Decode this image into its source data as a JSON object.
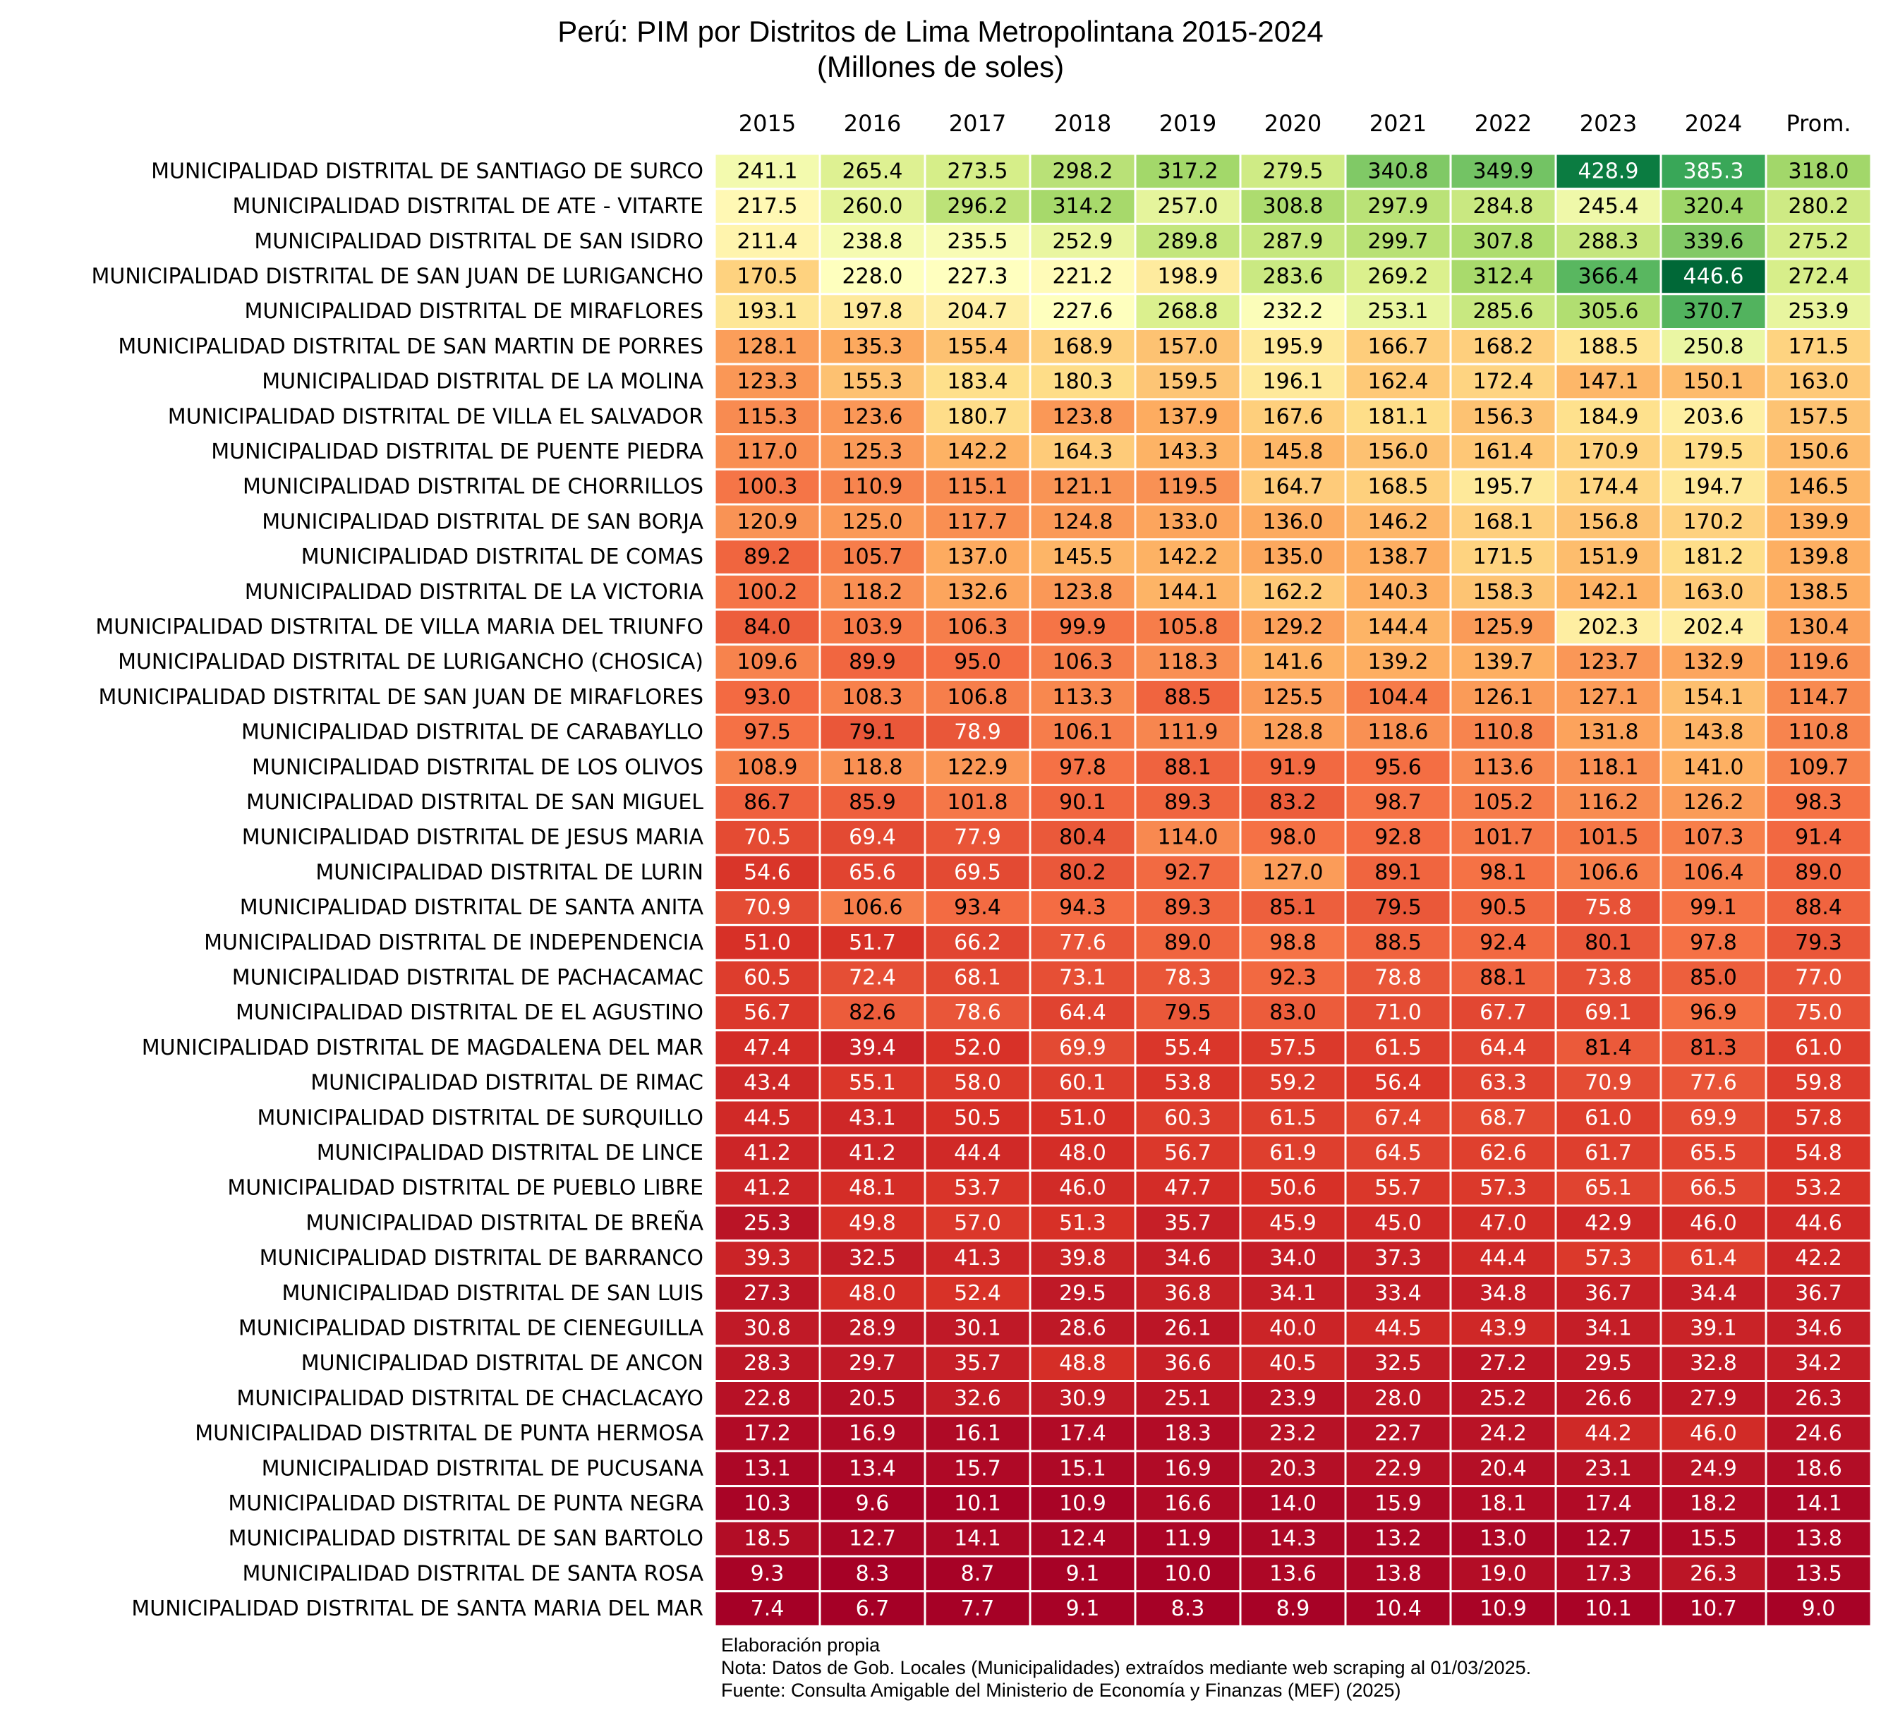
{
  "chart_data": {
    "type": "heatmap",
    "title": "Perú: PIM por Distritos de Lima Metropolintana 2015-2024",
    "subtitle": "(Millones de soles)",
    "columns": [
      "2015",
      "2016",
      "2017",
      "2018",
      "2019",
      "2020",
      "2021",
      "2022",
      "2023",
      "2024",
      "Prom."
    ],
    "colormap": "RdYlGn",
    "color_range": [
      7,
      447
    ],
    "rows": [
      {
        "label": "MUNICIPALIDAD DISTRITAL DE SANTIAGO DE SURCO",
        "values": [
          241.1,
          265.4,
          273.5,
          298.2,
          317.2,
          279.5,
          340.8,
          349.9,
          428.9,
          385.3,
          318.0
        ]
      },
      {
        "label": "MUNICIPALIDAD DISTRITAL DE ATE - VITARTE",
        "values": [
          217.5,
          260.0,
          296.2,
          314.2,
          257.0,
          308.8,
          297.9,
          284.8,
          245.4,
          320.4,
          280.2
        ]
      },
      {
        "label": "MUNICIPALIDAD DISTRITAL DE SAN ISIDRO",
        "values": [
          211.4,
          238.8,
          235.5,
          252.9,
          289.8,
          287.9,
          299.7,
          307.8,
          288.3,
          339.6,
          275.2
        ]
      },
      {
        "label": "MUNICIPALIDAD DISTRITAL DE SAN JUAN DE LURIGANCHO",
        "values": [
          170.5,
          228.0,
          227.3,
          221.2,
          198.9,
          283.6,
          269.2,
          312.4,
          366.4,
          446.6,
          272.4
        ]
      },
      {
        "label": "MUNICIPALIDAD DISTRITAL DE MIRAFLORES",
        "values": [
          193.1,
          197.8,
          204.7,
          227.6,
          268.8,
          232.2,
          253.1,
          285.6,
          305.6,
          370.7,
          253.9
        ]
      },
      {
        "label": "MUNICIPALIDAD DISTRITAL DE SAN MARTIN DE PORRES",
        "values": [
          128.1,
          135.3,
          155.4,
          168.9,
          157.0,
          195.9,
          166.7,
          168.2,
          188.5,
          250.8,
          171.5
        ]
      },
      {
        "label": "MUNICIPALIDAD DISTRITAL DE LA MOLINA",
        "values": [
          123.3,
          155.3,
          183.4,
          180.3,
          159.5,
          196.1,
          162.4,
          172.4,
          147.1,
          150.1,
          163.0
        ]
      },
      {
        "label": "MUNICIPALIDAD DISTRITAL DE VILLA EL SALVADOR",
        "values": [
          115.3,
          123.6,
          180.7,
          123.8,
          137.9,
          167.6,
          181.1,
          156.3,
          184.9,
          203.6,
          157.5
        ]
      },
      {
        "label": "MUNICIPALIDAD DISTRITAL DE PUENTE PIEDRA",
        "values": [
          117.0,
          125.3,
          142.2,
          164.3,
          143.3,
          145.8,
          156.0,
          161.4,
          170.9,
          179.5,
          150.6
        ]
      },
      {
        "label": "MUNICIPALIDAD DISTRITAL DE CHORRILLOS",
        "values": [
          100.3,
          110.9,
          115.1,
          121.1,
          119.5,
          164.7,
          168.5,
          195.7,
          174.4,
          194.7,
          146.5
        ]
      },
      {
        "label": "MUNICIPALIDAD DISTRITAL DE SAN BORJA",
        "values": [
          120.9,
          125.0,
          117.7,
          124.8,
          133.0,
          136.0,
          146.2,
          168.1,
          156.8,
          170.2,
          139.9
        ]
      },
      {
        "label": "MUNICIPALIDAD DISTRITAL DE COMAS",
        "values": [
          89.2,
          105.7,
          137.0,
          145.5,
          142.2,
          135.0,
          138.7,
          171.5,
          151.9,
          181.2,
          139.8
        ]
      },
      {
        "label": "MUNICIPALIDAD DISTRITAL DE LA VICTORIA",
        "values": [
          100.2,
          118.2,
          132.6,
          123.8,
          144.1,
          162.2,
          140.3,
          158.3,
          142.1,
          163.0,
          138.5
        ]
      },
      {
        "label": "MUNICIPALIDAD DISTRITAL DE VILLA MARIA DEL TRIUNFO",
        "values": [
          84.0,
          103.9,
          106.3,
          99.9,
          105.8,
          129.2,
          144.4,
          125.9,
          202.3,
          202.4,
          130.4
        ]
      },
      {
        "label": "MUNICIPALIDAD DISTRITAL DE LURIGANCHO (CHOSICA)",
        "values": [
          109.6,
          89.9,
          95.0,
          106.3,
          118.3,
          141.6,
          139.2,
          139.7,
          123.7,
          132.9,
          119.6
        ]
      },
      {
        "label": "MUNICIPALIDAD DISTRITAL DE SAN JUAN DE MIRAFLORES",
        "values": [
          93.0,
          108.3,
          106.8,
          113.3,
          88.5,
          125.5,
          104.4,
          126.1,
          127.1,
          154.1,
          114.7
        ]
      },
      {
        "label": "MUNICIPALIDAD DISTRITAL DE CARABAYLLO",
        "values": [
          97.5,
          79.1,
          78.9,
          106.1,
          111.9,
          128.8,
          118.6,
          110.8,
          131.8,
          143.8,
          110.8
        ]
      },
      {
        "label": "MUNICIPALIDAD DISTRITAL DE LOS OLIVOS",
        "values": [
          108.9,
          118.8,
          122.9,
          97.8,
          88.1,
          91.9,
          95.6,
          113.6,
          118.1,
          141.0,
          109.7
        ]
      },
      {
        "label": "MUNICIPALIDAD DISTRITAL DE SAN MIGUEL",
        "values": [
          86.7,
          85.9,
          101.8,
          90.1,
          89.3,
          83.2,
          98.7,
          105.2,
          116.2,
          126.2,
          98.3
        ]
      },
      {
        "label": "MUNICIPALIDAD DISTRITAL DE JESUS MARIA",
        "values": [
          70.5,
          69.4,
          77.9,
          80.4,
          114.0,
          98.0,
          92.8,
          101.7,
          101.5,
          107.3,
          91.4
        ]
      },
      {
        "label": "MUNICIPALIDAD DISTRITAL DE LURIN",
        "values": [
          54.6,
          65.6,
          69.5,
          80.2,
          92.7,
          127.0,
          89.1,
          98.1,
          106.6,
          106.4,
          89.0
        ]
      },
      {
        "label": "MUNICIPALIDAD DISTRITAL DE SANTA ANITA",
        "values": [
          70.9,
          106.6,
          93.4,
          94.3,
          89.3,
          85.1,
          79.5,
          90.5,
          75.8,
          99.1,
          88.4
        ]
      },
      {
        "label": "MUNICIPALIDAD DISTRITAL DE INDEPENDENCIA",
        "values": [
          51.0,
          51.7,
          66.2,
          77.6,
          89.0,
          98.8,
          88.5,
          92.4,
          80.1,
          97.8,
          79.3
        ]
      },
      {
        "label": "MUNICIPALIDAD DISTRITAL DE PACHACAMAC",
        "values": [
          60.5,
          72.4,
          68.1,
          73.1,
          78.3,
          92.3,
          78.8,
          88.1,
          73.8,
          85.0,
          77.0
        ]
      },
      {
        "label": "MUNICIPALIDAD DISTRITAL DE EL AGUSTINO",
        "values": [
          56.7,
          82.6,
          78.6,
          64.4,
          79.5,
          83.0,
          71.0,
          67.7,
          69.1,
          96.9,
          75.0
        ]
      },
      {
        "label": "MUNICIPALIDAD DISTRITAL DE MAGDALENA DEL MAR",
        "values": [
          47.4,
          39.4,
          52.0,
          69.9,
          55.4,
          57.5,
          61.5,
          64.4,
          81.4,
          81.3,
          61.0
        ]
      },
      {
        "label": "MUNICIPALIDAD DISTRITAL DE RIMAC",
        "values": [
          43.4,
          55.1,
          58.0,
          60.1,
          53.8,
          59.2,
          56.4,
          63.3,
          70.9,
          77.6,
          59.8
        ]
      },
      {
        "label": "MUNICIPALIDAD DISTRITAL DE SURQUILLO",
        "values": [
          44.5,
          43.1,
          50.5,
          51.0,
          60.3,
          61.5,
          67.4,
          68.7,
          61.0,
          69.9,
          57.8
        ]
      },
      {
        "label": "MUNICIPALIDAD DISTRITAL DE LINCE",
        "values": [
          41.2,
          41.2,
          44.4,
          48.0,
          56.7,
          61.9,
          64.5,
          62.6,
          61.7,
          65.5,
          54.8
        ]
      },
      {
        "label": "MUNICIPALIDAD DISTRITAL DE PUEBLO LIBRE",
        "values": [
          41.2,
          48.1,
          53.7,
          46.0,
          47.7,
          50.6,
          55.7,
          57.3,
          65.1,
          66.5,
          53.2
        ]
      },
      {
        "label": "MUNICIPALIDAD DISTRITAL DE BREÑA",
        "values": [
          25.3,
          49.8,
          57.0,
          51.3,
          35.7,
          45.9,
          45.0,
          47.0,
          42.9,
          46.0,
          44.6
        ]
      },
      {
        "label": "MUNICIPALIDAD DISTRITAL DE BARRANCO",
        "values": [
          39.3,
          32.5,
          41.3,
          39.8,
          34.6,
          34.0,
          37.3,
          44.4,
          57.3,
          61.4,
          42.2
        ]
      },
      {
        "label": "MUNICIPALIDAD DISTRITAL DE SAN LUIS",
        "values": [
          27.3,
          48.0,
          52.4,
          29.5,
          36.8,
          34.1,
          33.4,
          34.8,
          36.7,
          34.4,
          36.7
        ]
      },
      {
        "label": "MUNICIPALIDAD DISTRITAL DE CIENEGUILLA",
        "values": [
          30.8,
          28.9,
          30.1,
          28.6,
          26.1,
          40.0,
          44.5,
          43.9,
          34.1,
          39.1,
          34.6
        ]
      },
      {
        "label": "MUNICIPALIDAD DISTRITAL DE ANCON",
        "values": [
          28.3,
          29.7,
          35.7,
          48.8,
          36.6,
          40.5,
          32.5,
          27.2,
          29.5,
          32.8,
          34.2
        ]
      },
      {
        "label": "MUNICIPALIDAD DISTRITAL DE CHACLACAYO",
        "values": [
          22.8,
          20.5,
          32.6,
          30.9,
          25.1,
          23.9,
          28.0,
          25.2,
          26.6,
          27.9,
          26.3
        ]
      },
      {
        "label": "MUNICIPALIDAD DISTRITAL DE PUNTA HERMOSA",
        "values": [
          17.2,
          16.9,
          16.1,
          17.4,
          18.3,
          23.2,
          22.7,
          24.2,
          44.2,
          46.0,
          24.6
        ]
      },
      {
        "label": "MUNICIPALIDAD DISTRITAL DE PUCUSANA",
        "values": [
          13.1,
          13.4,
          15.7,
          15.1,
          16.9,
          20.3,
          22.9,
          20.4,
          23.1,
          24.9,
          18.6
        ]
      },
      {
        "label": "MUNICIPALIDAD DISTRITAL DE PUNTA NEGRA",
        "values": [
          10.3,
          9.6,
          10.1,
          10.9,
          16.6,
          14.0,
          15.9,
          18.1,
          17.4,
          18.2,
          14.1
        ]
      },
      {
        "label": "MUNICIPALIDAD DISTRITAL DE SAN BARTOLO",
        "values": [
          18.5,
          12.7,
          14.1,
          12.4,
          11.9,
          14.3,
          13.2,
          13.0,
          12.7,
          15.5,
          13.8
        ]
      },
      {
        "label": "MUNICIPALIDAD DISTRITAL DE SANTA ROSA",
        "values": [
          9.3,
          8.3,
          8.7,
          9.1,
          10.0,
          13.6,
          13.8,
          19.0,
          17.3,
          26.3,
          13.5
        ]
      },
      {
        "label": "MUNICIPALIDAD DISTRITAL DE SANTA MARIA DEL MAR",
        "values": [
          7.4,
          6.7,
          7.7,
          9.1,
          8.3,
          8.9,
          10.4,
          10.9,
          10.1,
          10.7,
          9.0
        ]
      }
    ],
    "value_format": "one decimal"
  },
  "notes": {
    "line1": "Elaboración propia",
    "line2": "Nota: Datos de Gob. Locales (Municipalidades) extraídos mediante web scraping al 01/03/2025.",
    "line3": "Fuente: Consulta Amigable del Ministerio de Economía y Finanzas (MEF) (2025)"
  }
}
